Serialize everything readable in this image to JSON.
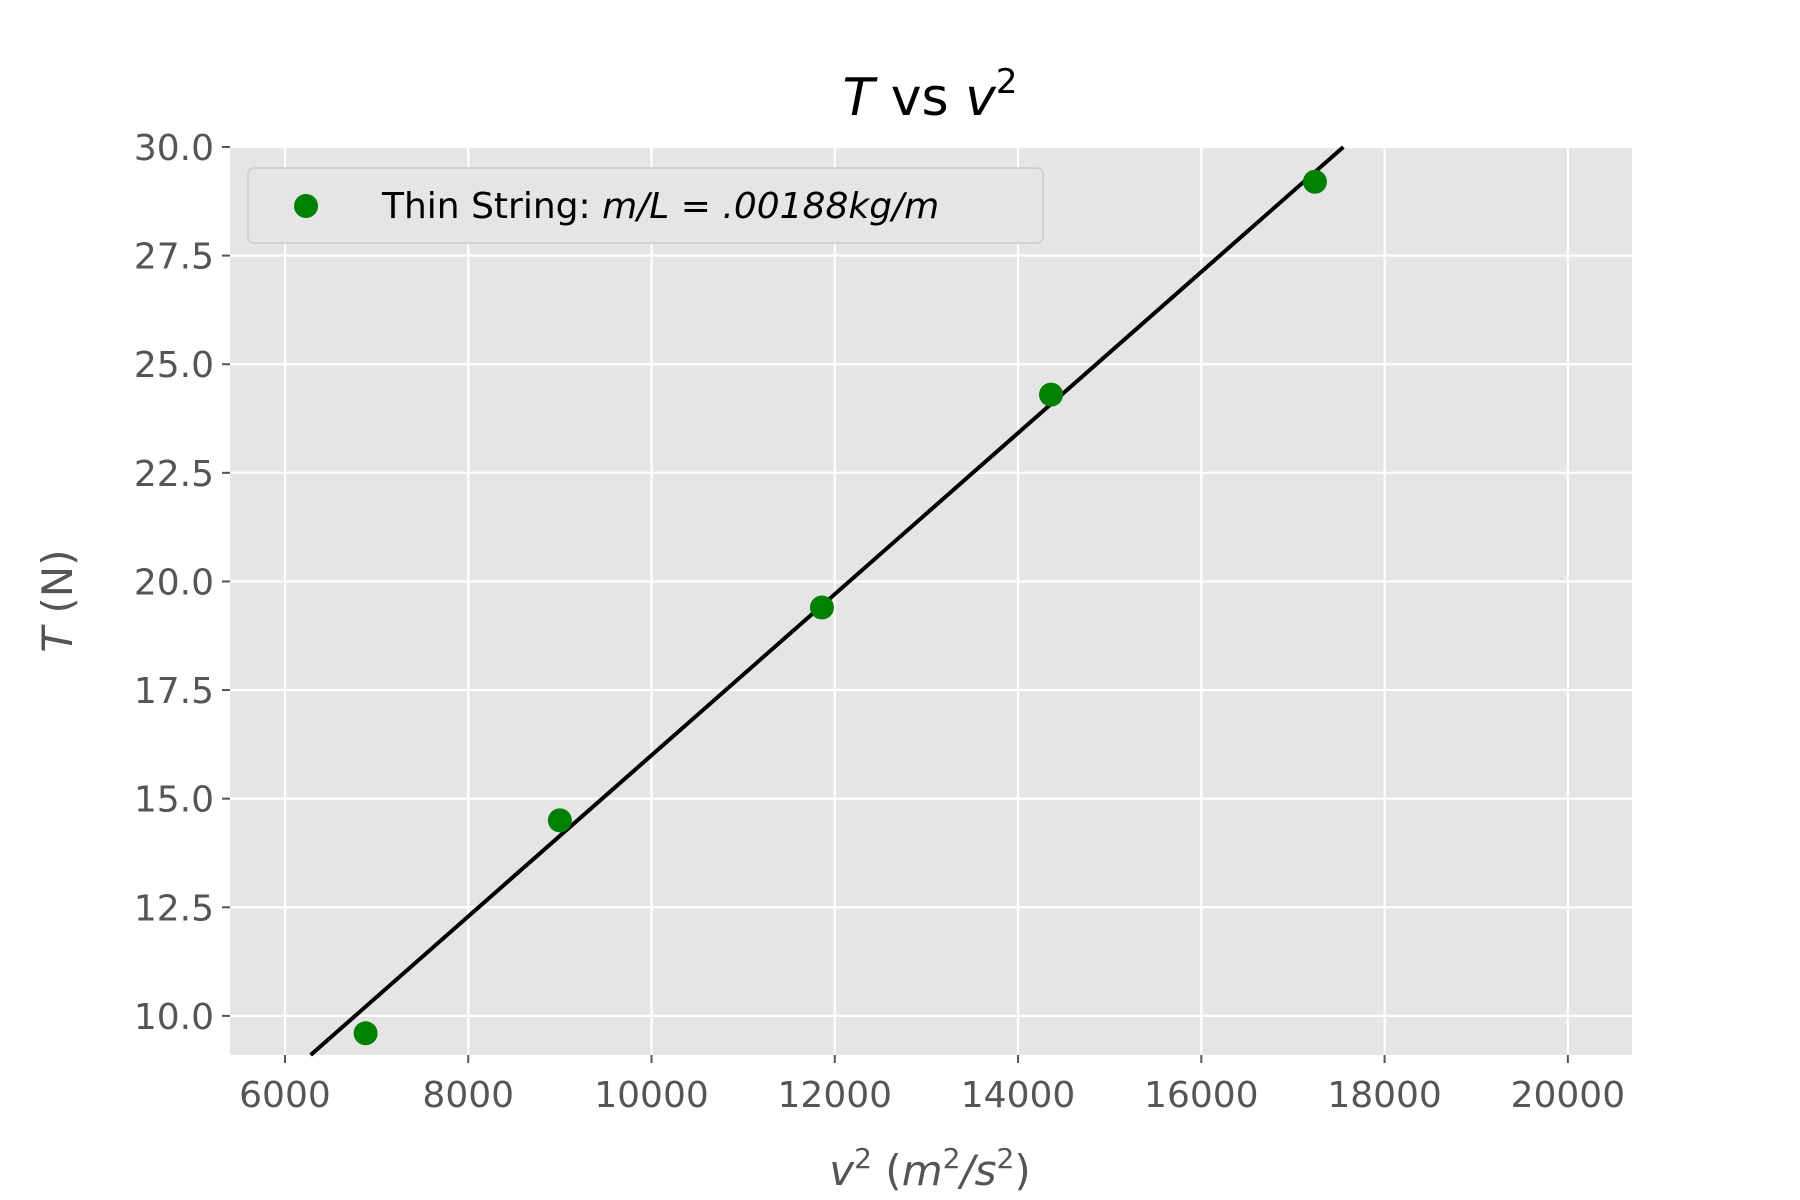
{
  "chart_data": {
    "type": "scatter",
    "title": {
      "var": "T",
      "mid": " vs ",
      "var2": "v",
      "sup": "2"
    },
    "xlabel": {
      "var": "v",
      "sup": "2",
      "open": " (",
      "unit1": "m",
      "sup1": "2",
      "slash": "/",
      "unit2": "s",
      "sup2": "2",
      "close": ")"
    },
    "ylabel": {
      "var": "T",
      "rest": " (N)"
    },
    "xlim": [
      5400,
      20700
    ],
    "ylim": [
      9.1,
      30.0
    ],
    "xticks": [
      6000,
      8000,
      10000,
      12000,
      14000,
      16000,
      18000,
      20000
    ],
    "xtick_labels": [
      "6000",
      "8000",
      "10000",
      "12000",
      "14000",
      "16000",
      "18000",
      "20000"
    ],
    "yticks": [
      10.0,
      12.5,
      15.0,
      17.5,
      20.0,
      22.5,
      25.0,
      27.5,
      30.0
    ],
    "ytick_labels": [
      "10.0",
      "12.5",
      "15.0",
      "17.5",
      "20.0",
      "22.5",
      "25.0",
      "27.5",
      "30.0"
    ],
    "grid": true,
    "legend_position": "upper-left",
    "series": [
      {
        "name": {
          "prefix": "Thin String: ",
          "math": "m/L = .00188kg/m"
        },
        "color": "#008000",
        "x": [
          6880,
          9000,
          11860,
          14360,
          17240
        ],
        "y": [
          9.6,
          14.5,
          19.4,
          24.3,
          29.2
        ]
      }
    ],
    "fit_line": {
      "color": "#000000",
      "x": [
        6280,
        17550
      ],
      "y": [
        9.1,
        30.0
      ]
    },
    "colors": {
      "plot_bg": "#e5e5e5",
      "grid": "#ffffff",
      "text": "#555555"
    }
  }
}
